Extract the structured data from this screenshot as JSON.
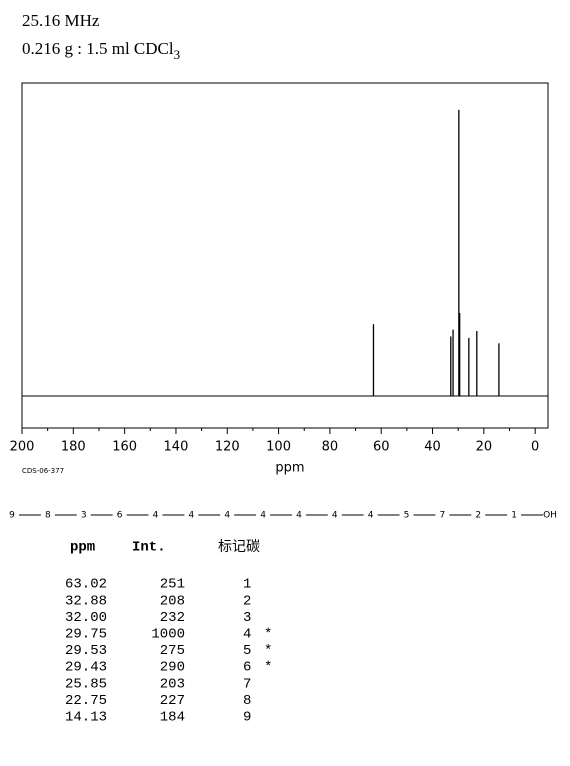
{
  "header": {
    "frequency": "25.16 MHz",
    "sample": "0.216 g : 1.5 ml CDCl",
    "sample_subscript": "3"
  },
  "chart_data": {
    "type": "stem",
    "x_label": "ppm",
    "code": "CDS-06-377",
    "x": [
      63.02,
      32.88,
      32.0,
      29.75,
      29.53,
      29.43,
      25.85,
      22.75,
      14.13
    ],
    "values": [
      251,
      208,
      232,
      1000,
      275,
      290,
      203,
      227,
      184
    ],
    "color": "#000000",
    "xlim": [
      200,
      -5
    ],
    "ylim": [
      -112,
      1094
    ],
    "xticks": [
      200,
      180,
      160,
      140,
      120,
      100,
      80,
      60,
      40,
      20,
      0
    ],
    "xminorticks": [
      190,
      170,
      150,
      130,
      110,
      90,
      70,
      50,
      30,
      10
    ]
  },
  "structure": {
    "atoms": [
      "9",
      "8",
      "3",
      "6",
      "4",
      "4",
      "4",
      "4",
      "4",
      "4",
      "4",
      "5",
      "7",
      "2",
      "1",
      "OH"
    ]
  },
  "table": {
    "header": [
      "ppm",
      "Int.",
      "标记碳"
    ],
    "rows": [
      [
        "63.02",
        "251",
        "1"
      ],
      [
        "32.88",
        "208",
        "2"
      ],
      [
        "32.00",
        "232",
        "3"
      ],
      [
        "29.75",
        "1000",
        "4",
        "*"
      ],
      [
        "29.53",
        "275",
        "5",
        "*"
      ],
      [
        "29.43",
        "290",
        "6",
        "*"
      ],
      [
        "25.85",
        "203",
        "7"
      ],
      [
        "22.75",
        "227",
        "8"
      ],
      [
        "14.13",
        "184",
        "9"
      ]
    ]
  }
}
